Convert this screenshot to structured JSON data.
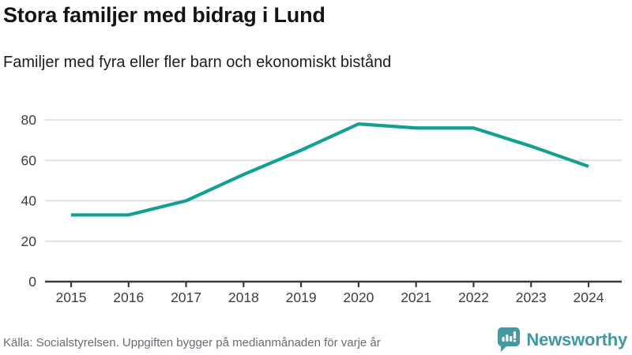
{
  "chart_data": {
    "type": "line",
    "title": "Stora familjer med bidrag i Lund",
    "subtitle": "Familjer med fyra eller fler barn och ekonomiskt bistånd",
    "categories": [
      "2015",
      "2016",
      "2017",
      "2018",
      "2019",
      "2020",
      "2021",
      "2022",
      "2023",
      "2024"
    ],
    "series": [
      {
        "name": "Familjer med fyra eller fler barn och ekonomiskt bistånd",
        "values": [
          33,
          33,
          40,
          53,
          65,
          78,
          76,
          76,
          67,
          57
        ]
      }
    ],
    "ylim": [
      0,
      80
    ],
    "yticks": [
      0,
      20,
      40,
      60,
      80
    ],
    "grid": true,
    "legend_position": "none",
    "source": "Källa: Socialstyrelsen. Uppgiften bygger på medianmånaden för varje år"
  },
  "footer": {
    "brand": "Newsworthy"
  },
  "colors": {
    "line": "#12a095",
    "gridline": "#dedede",
    "axis": "#3a3a3a",
    "tick_label": "#3d3d3d",
    "source_text": "#6b6b75",
    "logo_teal": "#459aa1",
    "wordmark_teal": "#3f99a1"
  }
}
